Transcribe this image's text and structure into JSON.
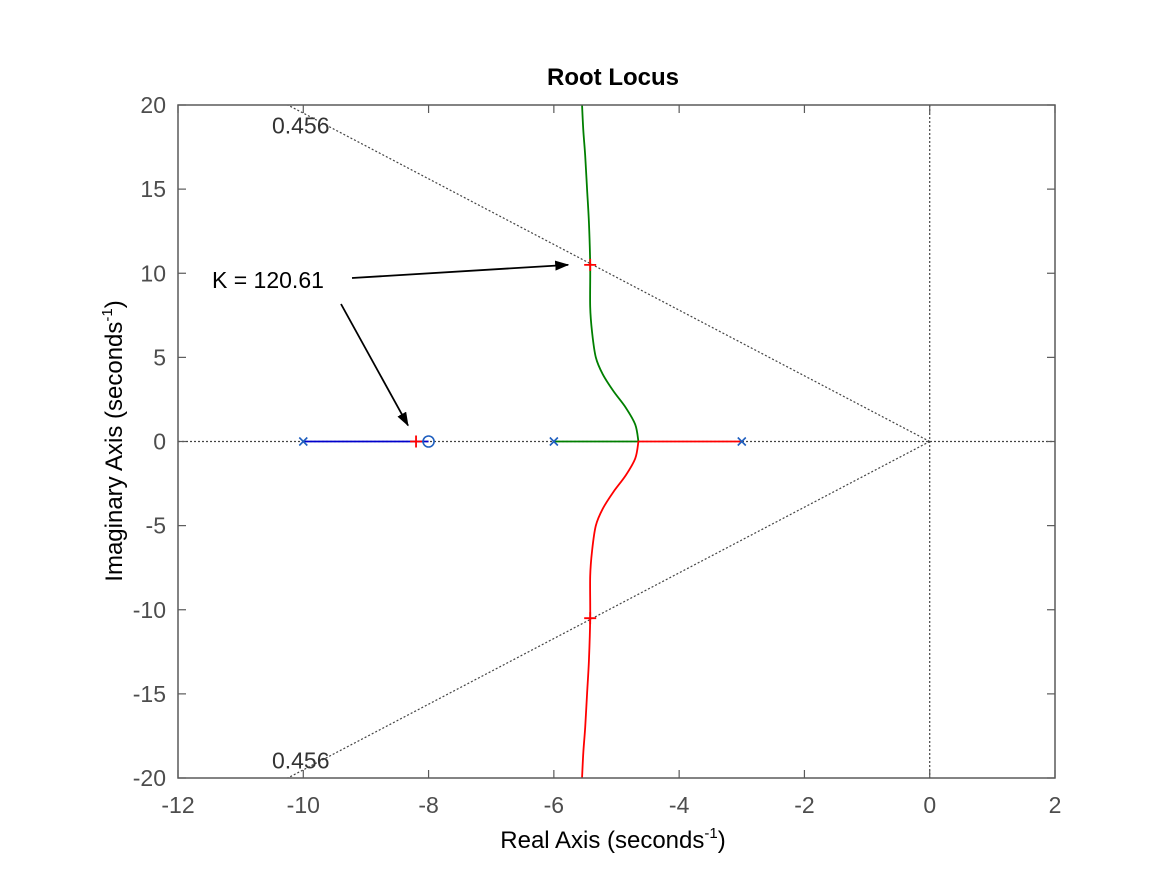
{
  "chart_data": {
    "type": "line",
    "title": "Root Locus",
    "xlabel": {
      "main": "Real Axis (seconds",
      "sup": "-1",
      "close": ")"
    },
    "ylabel": {
      "main": "Imaginary Axis (seconds",
      "sup": "-1",
      "close": ")"
    },
    "xlim": [
      -12,
      2
    ],
    "ylim": [
      -20,
      20
    ],
    "xticks": [
      -12,
      -10,
      -8,
      -6,
      -4,
      -2,
      0,
      2
    ],
    "yticks": [
      -20,
      -15,
      -10,
      -5,
      0,
      5,
      10,
      15,
      20
    ],
    "grid": false,
    "colors": {
      "axes": "#5a5a5a",
      "branch_blue": "#0000cc",
      "branch_green": "#007f00",
      "branch_red": "#ff0000",
      "pole_marker": "#1f5fbf",
      "zero_marker": "#1f5fbf",
      "gain_marker": "#ff0000",
      "guide": "#444444"
    },
    "poles": [
      [
        -10,
        0
      ],
      [
        -6,
        0
      ],
      [
        -3,
        0
      ]
    ],
    "zeros": [
      [
        -8,
        0
      ]
    ],
    "branches": [
      {
        "color": "blue",
        "points": [
          [
            -10,
            0
          ],
          [
            -8,
            0
          ]
        ]
      },
      {
        "color": "green",
        "points": [
          [
            -6,
            0
          ],
          [
            -4.65,
            0
          ],
          [
            -4.7,
            1
          ],
          [
            -4.85,
            2
          ],
          [
            -5.05,
            3
          ],
          [
            -5.22,
            4
          ],
          [
            -5.33,
            5
          ],
          [
            -5.39,
            6.5
          ],
          [
            -5.42,
            8
          ],
          [
            -5.42,
            10.5
          ],
          [
            -5.44,
            13
          ],
          [
            -5.47,
            15
          ],
          [
            -5.5,
            17
          ],
          [
            -5.53,
            18.5
          ],
          [
            -5.55,
            20
          ]
        ]
      },
      {
        "color": "red",
        "points": [
          [
            -3,
            0
          ],
          [
            -4.65,
            0
          ],
          [
            -4.7,
            -1
          ],
          [
            -4.85,
            -2
          ],
          [
            -5.05,
            -3
          ],
          [
            -5.22,
            -4
          ],
          [
            -5.33,
            -5
          ],
          [
            -5.39,
            -6.5
          ],
          [
            -5.42,
            -8
          ],
          [
            -5.42,
            -10.5
          ],
          [
            -5.44,
            -13
          ],
          [
            -5.47,
            -15
          ],
          [
            -5.5,
            -17
          ],
          [
            -5.53,
            -18.5
          ],
          [
            -5.55,
            -20
          ]
        ]
      }
    ],
    "gain_points": [
      [
        -8.2,
        0
      ],
      [
        -5.42,
        10.5
      ],
      [
        -5.42,
        -10.5
      ]
    ],
    "damping_ratio": 0.456,
    "damping_labels": [
      "0.456",
      "0.456"
    ],
    "annotation": {
      "text": "K = 120.61",
      "targets": [
        [
          -5.42,
          10.5
        ],
        [
          -8.2,
          0
        ]
      ]
    }
  }
}
